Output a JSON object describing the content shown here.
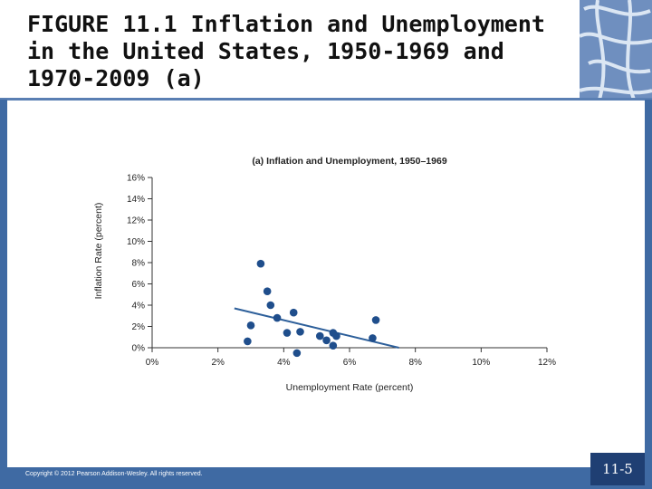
{
  "slide": {
    "title": "FIGURE 11.1  Inflation and Unemployment in the United States, 1950-1969 and 1970-2009 (a)",
    "copyright": "Copyright © 2012 Pearson Addison-Wesley. All rights reserved.",
    "page_number": "11-5"
  },
  "colors": {
    "frame": "#3f6aa3",
    "page_box": "#1f3f73",
    "points": "#1f4e8c",
    "trend_line": "#2d5f9a",
    "axis": "#333333"
  },
  "chart_data": {
    "type": "scatter",
    "title": "(a) Inflation and Unemployment, 1950–1969",
    "xlabel": "Unemployment Rate (percent)",
    "ylabel": "Inflation Rate (percent)",
    "xlim": [
      0,
      12
    ],
    "ylim": [
      0,
      16
    ],
    "x_ticks": [
      "0%",
      "2%",
      "4%",
      "6%",
      "8%",
      "10%",
      "12%"
    ],
    "y_ticks": [
      "0%",
      "2%",
      "4%",
      "6%",
      "8%",
      "10%",
      "12%",
      "14%",
      "16%"
    ],
    "grid": false,
    "series": [
      {
        "points": [
          {
            "x": 2.9,
            "y": 0.6
          },
          {
            "x": 3.0,
            "y": 2.1
          },
          {
            "x": 3.3,
            "y": 7.9
          },
          {
            "x": 3.5,
            "y": 5.3
          },
          {
            "x": 3.6,
            "y": 4.0
          },
          {
            "x": 3.8,
            "y": 2.8
          },
          {
            "x": 4.1,
            "y": 1.4
          },
          {
            "x": 4.3,
            "y": 3.3
          },
          {
            "x": 4.4,
            "y": -0.5
          },
          {
            "x": 4.5,
            "y": 1.5
          },
          {
            "x": 5.1,
            "y": 1.1
          },
          {
            "x": 5.3,
            "y": 0.7
          },
          {
            "x": 5.5,
            "y": 1.4
          },
          {
            "x": 5.5,
            "y": 0.2
          },
          {
            "x": 5.6,
            "y": 1.1
          },
          {
            "x": 6.7,
            "y": 0.9
          },
          {
            "x": 6.8,
            "y": 2.6
          }
        ]
      }
    ],
    "trend_line": {
      "x": [
        2.5,
        7.5
      ],
      "y": [
        3.7,
        0.0
      ]
    }
  }
}
